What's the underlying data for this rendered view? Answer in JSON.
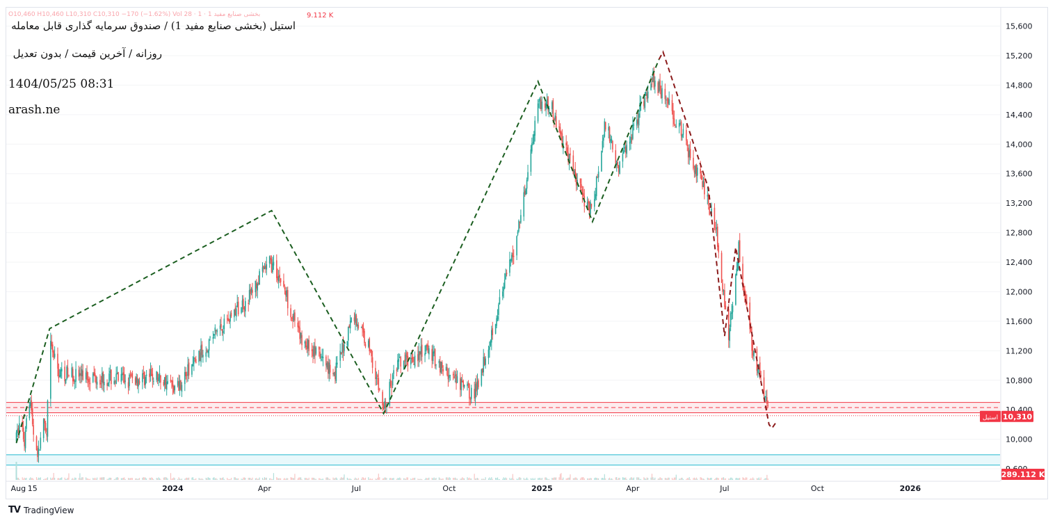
{
  "title": {
    "main": "استیل (بخشی صنایع مفید 1) / صندوق سرمایه گذاری قابل معامله",
    "sub": "روزانه / آخرین قیمت / بدون تعدیل",
    "timestamp": "1404/05/25 08:31",
    "site": "arash.ne"
  },
  "ohlc_strip": {
    "text": "بخشی صنایع مفید 1 · 1 · O10,460  H10,460  L10,310  C10,310  −170 (−1.62%)  Vol 28",
    "volume": "9.112 K"
  },
  "footer": {
    "brand": "TradingView",
    "logo": "TV"
  },
  "colors": {
    "up": "#26a69a",
    "down": "#ef5350",
    "zigzag_green": "#1b5e20",
    "zigzag_red": "#8b1a1a",
    "support_zone_fill": "#fdecee",
    "support_zone_line": "#f23645",
    "low_zone_line": "#22b8cf",
    "price_label_bg": "#f23645"
  },
  "chart_data": {
    "type": "candlestick",
    "symbol_label": "استیل",
    "last_price_label": "10,310",
    "last_price": 10310,
    "volume_label": "289.112 K",
    "ylim": [
      9450,
      15850
    ],
    "y_ticks": [
      9600,
      10000,
      10400,
      10800,
      11200,
      11600,
      12000,
      12400,
      12800,
      13200,
      13600,
      14000,
      14400,
      14800,
      15200,
      15600
    ],
    "y_tick_labels": [
      "9,600",
      "10,000",
      "10,400",
      "10,800",
      "11,200",
      "11,600",
      "12,000",
      "12,400",
      "12,800",
      "13,200",
      "13,600",
      "14,000",
      "14,400",
      "14,800",
      "15,200",
      "15,600"
    ],
    "x_range": [
      "2023-07-20",
      "2026-03-31"
    ],
    "x_ticks": [
      {
        "date": "2023-08-01",
        "label": "Aug"
      },
      {
        "date": "2023-08-15",
        "label": "15"
      },
      {
        "date": "2024-01-01",
        "label": "2024"
      },
      {
        "date": "2024-04-01",
        "label": "Apr"
      },
      {
        "date": "2024-07-01",
        "label": "Jul"
      },
      {
        "date": "2024-10-01",
        "label": "Oct"
      },
      {
        "date": "2025-01-01",
        "label": "2025"
      },
      {
        "date": "2025-04-01",
        "label": "Apr"
      },
      {
        "date": "2025-07-01",
        "label": "Jul"
      },
      {
        "date": "2025-10-01",
        "label": "Oct"
      },
      {
        "date": "2026-01-01",
        "label": "2026"
      }
    ],
    "price_path": [
      {
        "date": "2023-07-30",
        "price": 10000
      },
      {
        "date": "2023-08-03",
        "price": 10300
      },
      {
        "date": "2023-08-07",
        "price": 9950
      },
      {
        "date": "2023-08-10",
        "price": 10600
      },
      {
        "date": "2023-08-13",
        "price": 10500
      },
      {
        "date": "2023-08-17",
        "price": 9950
      },
      {
        "date": "2023-08-21",
        "price": 9800
      },
      {
        "date": "2023-08-25",
        "price": 10250
      },
      {
        "date": "2023-08-29",
        "price": 10000
      },
      {
        "date": "2023-09-01",
        "price": 11300
      },
      {
        "date": "2023-09-10",
        "price": 10900
      },
      {
        "date": "2023-11-15",
        "price": 10800
      },
      {
        "date": "2023-12-15",
        "price": 10850
      },
      {
        "date": "2024-01-05",
        "price": 10700
      },
      {
        "date": "2024-02-15",
        "price": 11500
      },
      {
        "date": "2024-03-15",
        "price": 11900
      },
      {
        "date": "2024-04-06",
        "price": 12400
      },
      {
        "date": "2024-04-18",
        "price": 12150
      },
      {
        "date": "2024-05-05",
        "price": 11400
      },
      {
        "date": "2024-06-10",
        "price": 10900
      },
      {
        "date": "2024-06-28",
        "price": 11700
      },
      {
        "date": "2024-07-15",
        "price": 11200
      },
      {
        "date": "2024-07-28",
        "price": 10400
      },
      {
        "date": "2024-08-10",
        "price": 11000
      },
      {
        "date": "2024-09-10",
        "price": 11200
      },
      {
        "date": "2024-10-05",
        "price": 10800
      },
      {
        "date": "2024-10-26",
        "price": 10600
      },
      {
        "date": "2024-11-15",
        "price": 11600
      },
      {
        "date": "2024-12-05",
        "price": 12600
      },
      {
        "date": "2024-12-20",
        "price": 13800
      },
      {
        "date": "2024-12-28",
        "price": 14600
      },
      {
        "date": "2025-01-10",
        "price": 14500
      },
      {
        "date": "2025-01-25",
        "price": 13900
      },
      {
        "date": "2025-02-10",
        "price": 13300
      },
      {
        "date": "2025-02-20",
        "price": 13100
      },
      {
        "date": "2025-03-05",
        "price": 14300
      },
      {
        "date": "2025-03-18",
        "price": 13700
      },
      {
        "date": "2025-04-01",
        "price": 14200
      },
      {
        "date": "2025-04-20",
        "price": 14900
      },
      {
        "date": "2025-05-01",
        "price": 14700
      },
      {
        "date": "2025-05-18",
        "price": 14200
      },
      {
        "date": "2025-06-10",
        "price": 13400
      },
      {
        "date": "2025-06-22",
        "price": 12900
      },
      {
        "date": "2025-07-05",
        "price": 11400
      },
      {
        "date": "2025-07-15",
        "price": 12600
      },
      {
        "date": "2025-07-28",
        "price": 11300
      },
      {
        "date": "2025-08-08",
        "price": 10700
      },
      {
        "date": "2025-08-14",
        "price": 10310
      }
    ],
    "zigzag": {
      "green": [
        {
          "date": "2023-07-30",
          "price": 9950
        },
        {
          "date": "2023-09-01",
          "price": 11500
        },
        {
          "date": "2024-04-08",
          "price": 13100
        },
        {
          "date": "2024-07-28",
          "price": 10350
        },
        {
          "date": "2024-12-28",
          "price": 14850
        },
        {
          "date": "2025-02-20",
          "price": 12950
        },
        {
          "date": "2025-04-27",
          "price": 15150
        }
      ],
      "red": [
        {
          "date": "2025-04-27",
          "price": 15150
        },
        {
          "date": "2025-05-01",
          "price": 15250
        },
        {
          "date": "2025-06-15",
          "price": 13400
        },
        {
          "date": "2025-07-01",
          "price": 11400
        },
        {
          "date": "2025-07-12",
          "price": 12600
        },
        {
          "date": "2025-08-14",
          "price": 10200
        },
        {
          "date": "2025-08-17",
          "price": 10150
        },
        {
          "date": "2025-08-22",
          "price": 10250
        }
      ]
    },
    "support_zone": {
      "low": 10360,
      "high": 10500,
      "mid": 10430,
      "dotted_low": 10320
    },
    "low_zone": {
      "low": 9650,
      "high": 9790
    },
    "grid": true,
    "legend": "none"
  }
}
